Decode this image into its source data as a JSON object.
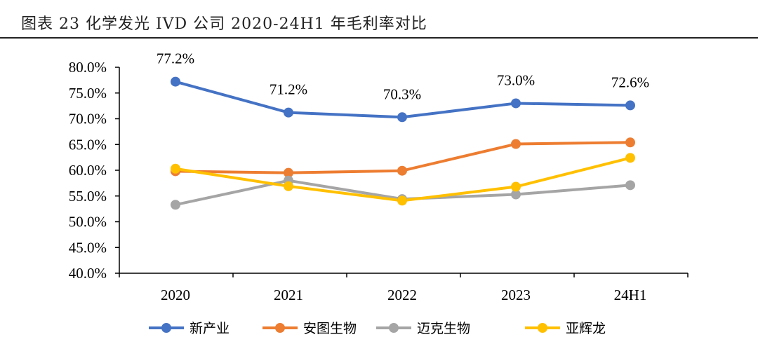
{
  "figure": {
    "title": "图表 23 化学发光 IVD 公司 2020-24H1 年毛利率对比"
  },
  "chart_data": {
    "type": "line",
    "title": "",
    "xlabel": "",
    "ylabel": "",
    "categories": [
      "2020",
      "2021",
      "2022",
      "2023",
      "24H1"
    ],
    "y_ticks": [
      "40.0%",
      "45.0%",
      "50.0%",
      "55.0%",
      "60.0%",
      "65.0%",
      "70.0%",
      "75.0%",
      "80.0%"
    ],
    "ylim": [
      40,
      80
    ],
    "grid": false,
    "legend_position": "bottom",
    "series": [
      {
        "name": "新产业",
        "color": "#4472C4",
        "values": [
          77.2,
          71.2,
          70.3,
          73.0,
          72.6
        ],
        "labels": [
          "77.2%",
          "71.2%",
          "70.3%",
          "73.0%",
          "72.6%"
        ]
      },
      {
        "name": "安图生物",
        "color": "#ED7D31",
        "values": [
          59.8,
          59.5,
          59.9,
          65.1,
          65.4
        ]
      },
      {
        "name": "迈克生物",
        "color": "#A5A5A5",
        "values": [
          53.3,
          58.0,
          54.4,
          55.3,
          57.1
        ]
      },
      {
        "name": "亚辉龙",
        "color": "#FFC000",
        "values": [
          60.3,
          56.9,
          54.1,
          56.8,
          62.4
        ]
      }
    ]
  }
}
